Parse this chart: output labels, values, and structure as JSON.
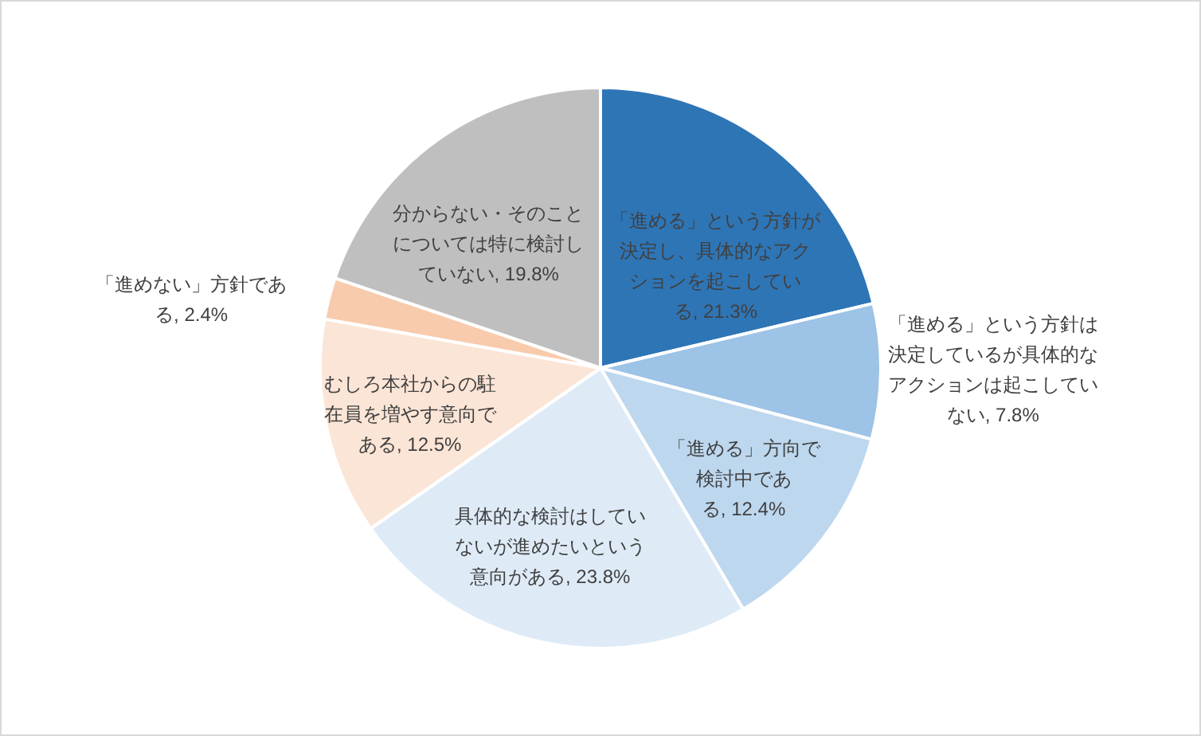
{
  "chart_data": {
    "type": "pie",
    "categories": [
      "「進める」という方針が決定し、具体的なアクションを起こしている",
      "「進める」という方針は決定しているが具体的なアクションは起こしていない",
      "「進める」方向で検討中である",
      "具体的な検討はしていないが進めたいという意向がある",
      "むしろ本社からの駐在員を増やす意向である",
      "「進めない」方針である",
      "分からない・そのことについては特に検討していない"
    ],
    "values": [
      21.3,
      7.8,
      12.4,
      23.8,
      12.5,
      2.4,
      19.8
    ],
    "value_labels": [
      "21.3%",
      "7.8%",
      "12.4%",
      "23.8%",
      "12.5%",
      "2.4%",
      "19.8%"
    ],
    "colors": [
      "#2e75b6",
      "#9dc3e6",
      "#bdd7ee",
      "#deebf7",
      "#fbe5d6",
      "#f8cbad",
      "#bfbfbf"
    ]
  }
}
